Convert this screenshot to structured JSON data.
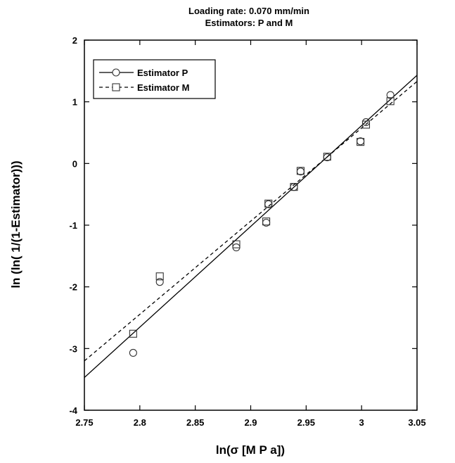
{
  "chart_data": {
    "type": "scatter",
    "title": [
      "Loading rate: 0.070 mm/min",
      "Estimators: P and M"
    ],
    "xlabel": "ln(σ  [M P a])",
    "ylabel": "ln (ln( 1/(1-Estimator)))",
    "xlim": [
      2.75,
      3.05
    ],
    "ylim": [
      -4,
      2
    ],
    "xticks": [
      "2.75",
      "2.8",
      "2.85",
      "2.9",
      "2.95",
      "3",
      "3.05"
    ],
    "yticks": [
      "-4",
      "-3",
      "-2",
      "-1",
      "0",
      "1",
      "2"
    ],
    "grid": false,
    "legend_position": "top-left",
    "series": [
      {
        "name": "Estimator P",
        "marker": "circle",
        "line_style": "solid",
        "color": "#000000",
        "points": [
          {
            "x": 2.794,
            "y": -3.07
          },
          {
            "x": 2.818,
            "y": -1.92
          },
          {
            "x": 2.887,
            "y": -1.36
          },
          {
            "x": 2.914,
            "y": -0.96
          },
          {
            "x": 2.916,
            "y": -0.66
          },
          {
            "x": 2.939,
            "y": -0.38
          },
          {
            "x": 2.945,
            "y": -0.13
          },
          {
            "x": 2.969,
            "y": 0.1
          },
          {
            "x": 2.999,
            "y": 0.36
          },
          {
            "x": 3.004,
            "y": 0.67
          },
          {
            "x": 3.026,
            "y": 1.11
          }
        ],
        "fit_line": {
          "x": [
            2.75,
            3.05
          ],
          "y": [
            -3.47,
            1.43
          ]
        }
      },
      {
        "name": "Estimator M",
        "marker": "square",
        "line_style": "dashed",
        "color": "#000000",
        "points": [
          {
            "x": 2.794,
            "y": -2.76
          },
          {
            "x": 2.818,
            "y": -1.83
          },
          {
            "x": 2.887,
            "y": -1.31
          },
          {
            "x": 2.914,
            "y": -0.94
          },
          {
            "x": 2.916,
            "y": -0.65
          },
          {
            "x": 2.939,
            "y": -0.38
          },
          {
            "x": 2.945,
            "y": -0.12
          },
          {
            "x": 2.969,
            "y": 0.11
          },
          {
            "x": 2.999,
            "y": 0.35
          },
          {
            "x": 3.004,
            "y": 0.63
          },
          {
            "x": 3.026,
            "y": 1.01
          }
        ],
        "fit_line": {
          "x": [
            2.75,
            3.05
          ],
          "y": [
            -3.2,
            1.33
          ]
        }
      }
    ]
  }
}
